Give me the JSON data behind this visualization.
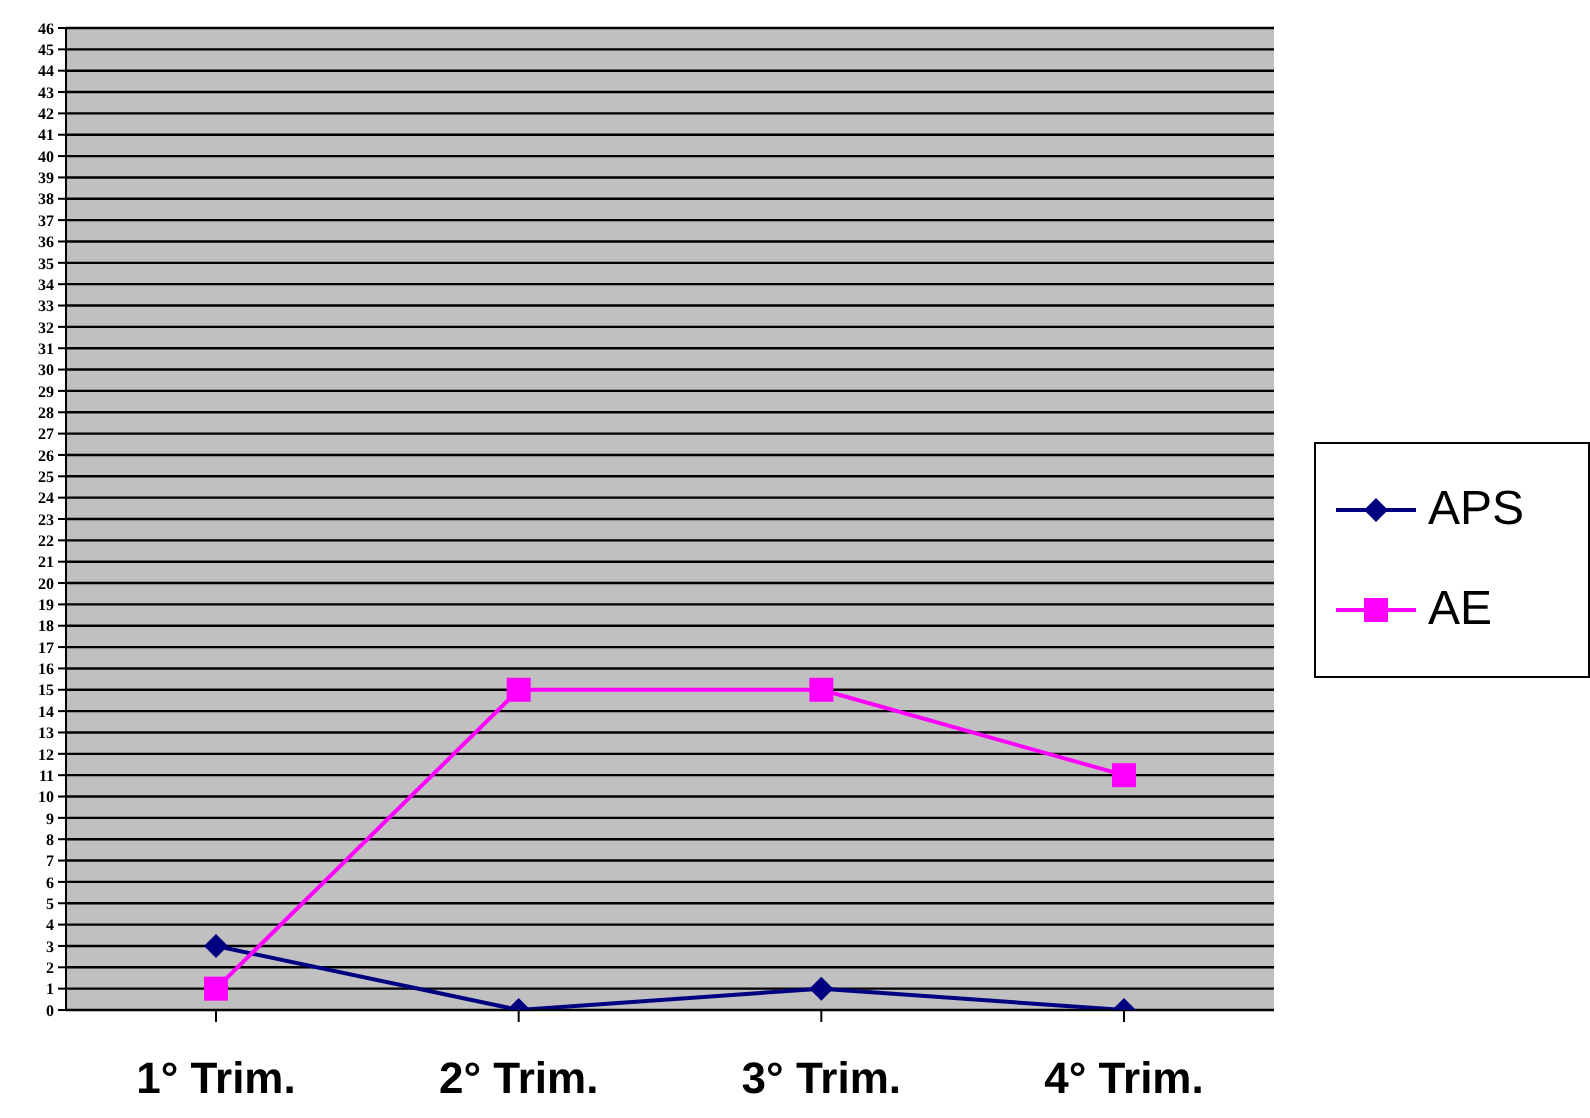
{
  "chart_data": {
    "type": "line",
    "categories": [
      "1° Trim.",
      "2° Trim.",
      "3° Trim.",
      "4° Trim."
    ],
    "series": [
      {
        "name": "APS",
        "color": "#000080",
        "marker": "diamond",
        "values": [
          3,
          0,
          1,
          0
        ]
      },
      {
        "name": "AE",
        "color": "#ff00ff",
        "marker": "square",
        "values": [
          1,
          15,
          15,
          11
        ]
      }
    ],
    "ylim": [
      0,
      46
    ],
    "yticks": [
      0,
      1,
      2,
      3,
      4,
      5,
      6,
      7,
      8,
      9,
      10,
      11,
      12,
      13,
      14,
      15,
      16,
      17,
      18,
      19,
      20,
      21,
      22,
      23,
      24,
      25,
      26,
      27,
      28,
      29,
      30,
      31,
      32,
      33,
      34,
      35,
      36,
      37,
      38,
      39,
      40,
      41,
      42,
      43,
      44,
      45,
      46
    ],
    "grid": "y",
    "legend": "right"
  }
}
